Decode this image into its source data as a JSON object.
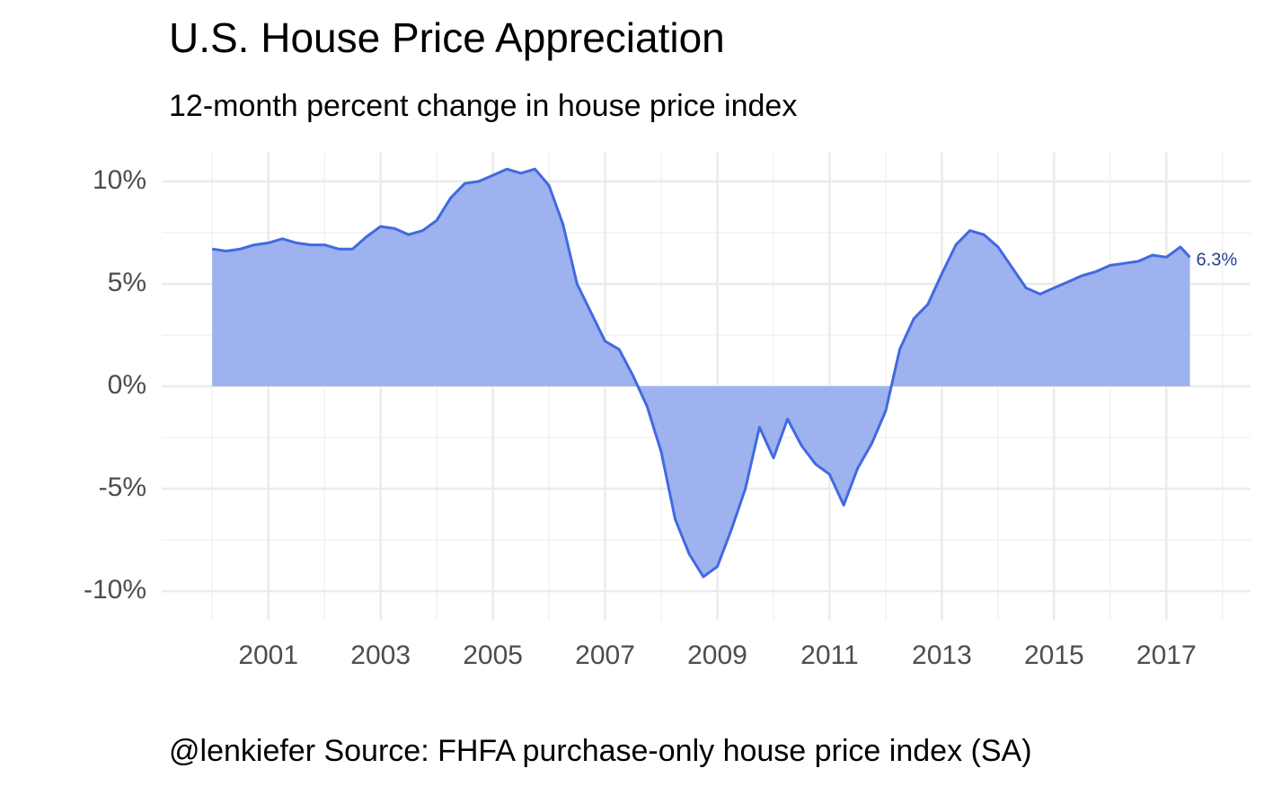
{
  "chart_data": {
    "type": "area",
    "title": "U.S. House Price Appreciation",
    "subtitle": "12-month percent change in house price index",
    "caption": "@lenkiefer Source: FHFA purchase-only house price index (SA)",
    "annotation": "6.3%",
    "x": [
      2000,
      2000.25,
      2000.5,
      2000.75,
      2001,
      2001.25,
      2001.5,
      2001.75,
      2002,
      2002.25,
      2002.5,
      2002.75,
      2003,
      2003.25,
      2003.5,
      2003.75,
      2004,
      2004.25,
      2004.5,
      2004.75,
      2005,
      2005.25,
      2005.5,
      2005.75,
      2006,
      2006.25,
      2006.5,
      2006.75,
      2007,
      2007.25,
      2007.5,
      2007.75,
      2008,
      2008.25,
      2008.5,
      2008.75,
      2009,
      2009.25,
      2009.5,
      2009.75,
      2010,
      2010.25,
      2010.5,
      2010.75,
      2011,
      2011.25,
      2011.5,
      2011.75,
      2012,
      2012.25,
      2012.5,
      2012.75,
      2013,
      2013.25,
      2013.5,
      2013.75,
      2014,
      2014.25,
      2014.5,
      2014.75,
      2015,
      2015.25,
      2015.5,
      2015.75,
      2016,
      2016.25,
      2016.5,
      2016.75,
      2017,
      2017.25,
      2017.42
    ],
    "series": [
      {
        "color": "#4169e1",
        "fill": "#9db2ee",
        "values": [
          6.7,
          6.6,
          6.7,
          6.9,
          7.0,
          7.2,
          7.0,
          6.9,
          6.9,
          6.7,
          6.7,
          7.3,
          7.8,
          7.7,
          7.4,
          7.6,
          8.1,
          9.2,
          9.9,
          10.0,
          10.3,
          10.6,
          10.4,
          10.6,
          9.8,
          7.9,
          5.0,
          3.6,
          2.2,
          1.8,
          0.5,
          -1.0,
          -3.2,
          -6.5,
          -8.2,
          -9.3,
          -8.8,
          -7.0,
          -5.0,
          -2.0,
          -3.5,
          -1.6,
          -2.9,
          -3.8,
          -4.3,
          -5.8,
          -4.0,
          -2.8,
          -1.2,
          1.8,
          3.3,
          4.0,
          5.5,
          6.9,
          7.6,
          7.4,
          6.8,
          5.8,
          4.8,
          4.5,
          4.8,
          5.1,
          5.4,
          5.6,
          5.9,
          6.0,
          6.1,
          6.4,
          6.3,
          6.8,
          6.3
        ]
      }
    ],
    "xlim": [
      1999.1,
      2018.5
    ],
    "xticks": [
      2001,
      2003,
      2005,
      2007,
      2009,
      2011,
      2013,
      2015,
      2017
    ],
    "ylim": [
      -11.4,
      11.4
    ],
    "yticks": [
      {
        "value": -10,
        "label": "-10%"
      },
      {
        "value": -5,
        "label": "-5%"
      },
      {
        "value": 0,
        "label": "0%"
      },
      {
        "value": 5,
        "label": "5%"
      },
      {
        "value": 10,
        "label": "10%"
      }
    ],
    "grid": true,
    "annotation_color": "#27408b"
  }
}
